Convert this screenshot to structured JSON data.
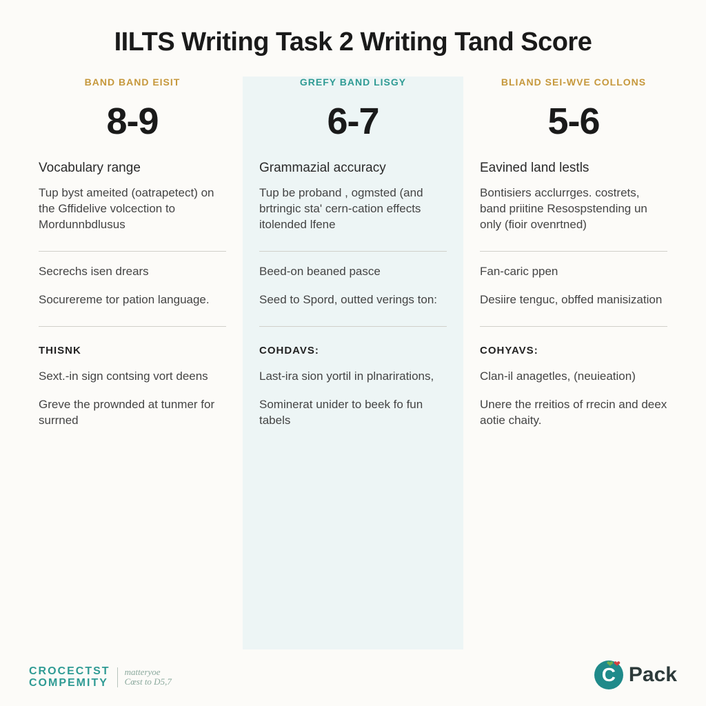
{
  "title": "IILTS Writing Task 2 Writing Tand Score",
  "columns": [
    {
      "header": "BAND BAND EISIT",
      "header_color": "#c6983c",
      "score": "8-9",
      "section1_title": "Vocabulary range",
      "section1_body": "Tup byst ameited (oatrapetect) on the Gffidelive volcection to Mordunnbdlusus",
      "row2a": "Secrechs isen drears",
      "row2b": "Socurereme tor pation language.",
      "subhead": "THISNK",
      "row3a": "Sext.-in sign contsing vort deens",
      "row3b": "Greve the prownded at tunmer for surrned"
    },
    {
      "header": "GREFY BAND LISGY",
      "header_color": "#2f9b94",
      "score": "6-7",
      "section1_title": "Grammazial accuracy",
      "section1_body": "Tup be proband , ogmsted (and brtringic sta' cern-cation effects itolended lfene",
      "row2a": "Beed-on beaned pasce",
      "row2b": "Seed to Spord, outted verings ton:",
      "subhead": "COHDAVS:",
      "row3a": "Last-ira sion yortil in plnarirations,",
      "row3b": "Sominerat unider to beek fo fun tabels"
    },
    {
      "header": "BLIAND SEI-WVE COLLONS",
      "header_color": "#c6983c",
      "score": "5-6",
      "section1_title": "Eavined land lestls",
      "section1_body": "Bontisiers acclurrges. costrets, band priitine Resospstending un only (fioir ovenrtned)",
      "row2a": "Fan-caric ppen",
      "row2b": "Desiire tenguc, obffed manisization",
      "subhead": "COHYAVS:",
      "row3a": "Clan-il anagetles, (neuieation)",
      "row3b": "Unere the rreitios of rrecin and deex aotie chaity."
    }
  ],
  "footer": {
    "left_line1": "CROCECTST",
    "left_line2": "COMPEMITY",
    "left_sub1": "matteryoe",
    "left_sub2": "Cœst to D5,7",
    "brand": "Pack",
    "logo_letter": "C"
  },
  "style": {
    "background": "#fcfbf8",
    "mid_col_bg": "#edf5f5",
    "divider_color": "#d0d0ca",
    "title_fontsize": 38,
    "score_fontsize": 54
  }
}
